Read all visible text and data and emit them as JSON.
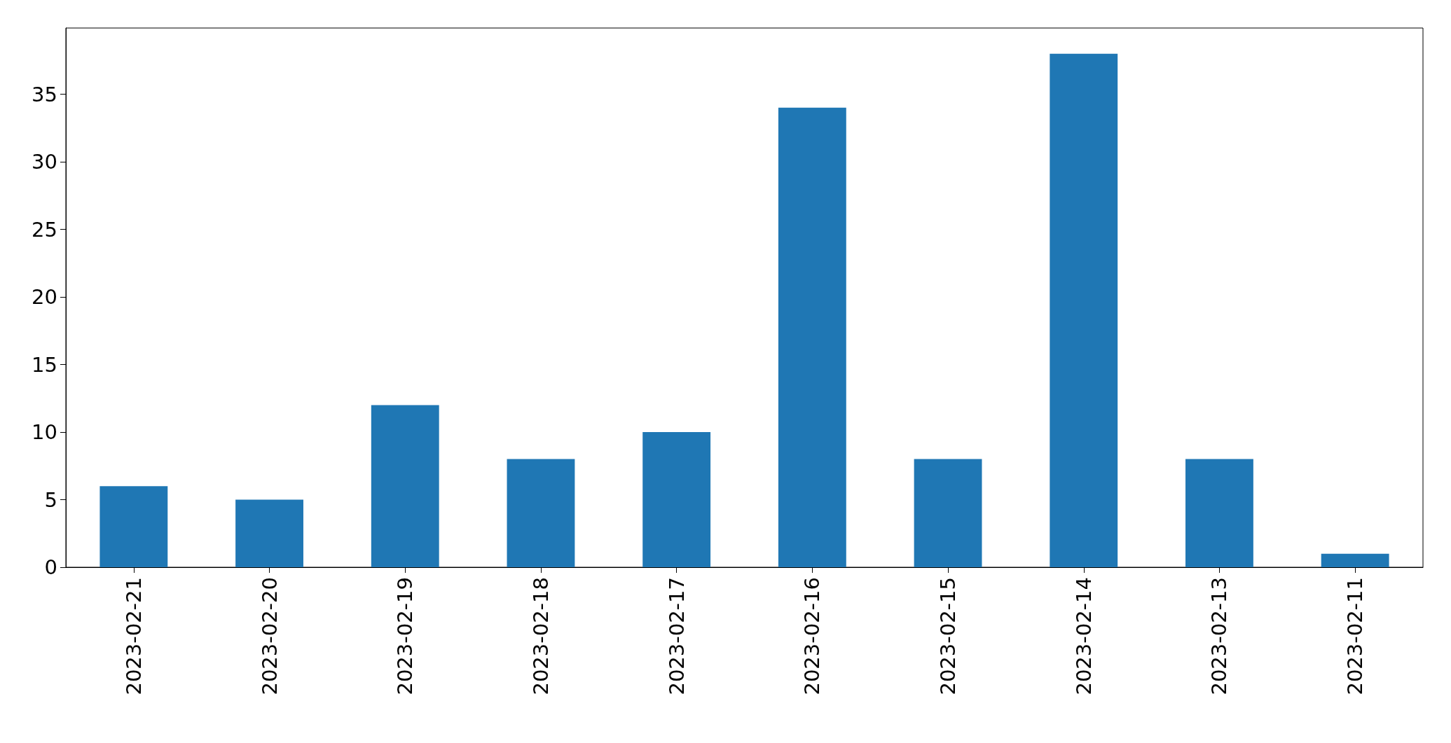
{
  "chart_data": {
    "type": "bar",
    "categories": [
      "2023-02-21",
      "2023-02-20",
      "2023-02-19",
      "2023-02-18",
      "2023-02-17",
      "2023-02-16",
      "2023-02-15",
      "2023-02-14",
      "2023-02-13",
      "2023-02-11"
    ],
    "values": [
      6,
      5,
      12,
      8,
      10,
      34,
      8,
      38,
      8,
      1
    ],
    "color": "#1f77b4",
    "ylim": [
      0,
      39.9
    ],
    "yticks": [
      0,
      5,
      10,
      15,
      20,
      25,
      30,
      35
    ]
  }
}
